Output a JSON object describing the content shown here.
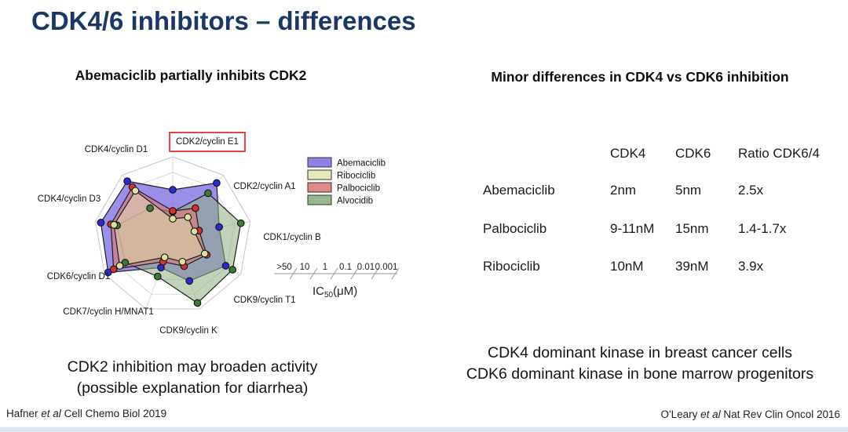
{
  "slide": {
    "title": "CDK4/6 inhibitors – differences",
    "title_color": "#1b3767",
    "background_color": "#ffffff",
    "bottom_bar_color": "#dde4f0"
  },
  "left": {
    "heading": "Abemaciclib partially inhibits CDK2",
    "caption_line1": "CDK2 inhibition may broaden activity",
    "caption_line2": "(possible explanation for diarrhea)",
    "citation": {
      "pre": "Hafner ",
      "italic": "et al",
      "post": " Cell Chemo Biol 2019"
    }
  },
  "right": {
    "heading": "Minor differences in CDK4 vs CDK6 inhibition",
    "table": {
      "col_headers": [
        "CDK4",
        "CDK6",
        "Ratio CDK6/4"
      ],
      "rows": [
        {
          "drug": "Abemaciclib",
          "cdk4": "2nm",
          "cdk6": "5nm",
          "ratio": "2.5x"
        },
        {
          "drug": "Palbociclib",
          "cdk4": "9-11nM",
          "cdk6": "15nm",
          "ratio": "1.4-1.7x"
        },
        {
          "drug": "Ribociclib",
          "cdk4": "10nM",
          "cdk6": "39nM",
          "ratio": "3.9x"
        }
      ]
    },
    "caption_line1": "CDK4 dominant kinase in breast cancer cells",
    "caption_line2": "CDK6 dominant kinase in bone marrow progenitors",
    "citation": {
      "pre": "O'Leary ",
      "italic": "et al",
      "post": " Nat Rev Clin Oncol 2016"
    }
  },
  "chart_data": {
    "type": "radar",
    "title": "Abemaciclib partially inhibits CDK2",
    "axes": [
      "CDK2/cyclin E1",
      "CDK2/cyclin A1",
      "CDK1/cyclin B",
      "CDK9/cyclin T1",
      "CDK9/cyclin K",
      "CDK7/cyclin H/MNAT1",
      "CDK6/cyclin D1",
      "CDK4/cyclin D3",
      "CDK4/cyclin D1"
    ],
    "highlighted_axis": "CDK2/cyclin E1",
    "highlight_box_color": "#e84545",
    "radial_scale": {
      "labels": [
        ">50",
        "10",
        "1",
        "0.1",
        "0.01",
        "0.001"
      ],
      "unit_label_parts": [
        "IC",
        "50",
        "(μM)"
      ],
      "note": "log scale from center (>50 μM) to edge (0.001 μM); values_norm = estimated fraction of full radius"
    },
    "series": [
      {
        "name": "Abemaciclib",
        "fill": "#8274e4",
        "dot": "#2b2bd6",
        "values_norm": [
          0.58,
          0.87,
          0.6,
          0.78,
          0.62,
          0.44,
          0.95,
          0.93,
          0.9
        ]
      },
      {
        "name": "Ribociclib",
        "fill": "#e4e6b0",
        "dot": "#dde29e",
        "values_norm": [
          0.21,
          0.3,
          0.28,
          0.47,
          0.36,
          0.3,
          0.78,
          0.76,
          0.74
        ]
      },
      {
        "name": "Palbociclib",
        "fill": "#dd7a7a",
        "dot": "#d63030",
        "values_norm": [
          0.31,
          0.45,
          0.34,
          0.5,
          0.42,
          0.36,
          0.87,
          0.8,
          0.8
        ]
      },
      {
        "name": "Alvocidib",
        "fill": "#8fae82",
        "dot": "#3c7a35",
        "values_norm": [
          0.3,
          0.7,
          0.88,
          0.88,
          0.92,
          0.56,
          0.7,
          0.72,
          0.45
        ]
      }
    ],
    "legend_position": "right",
    "grid": true
  }
}
